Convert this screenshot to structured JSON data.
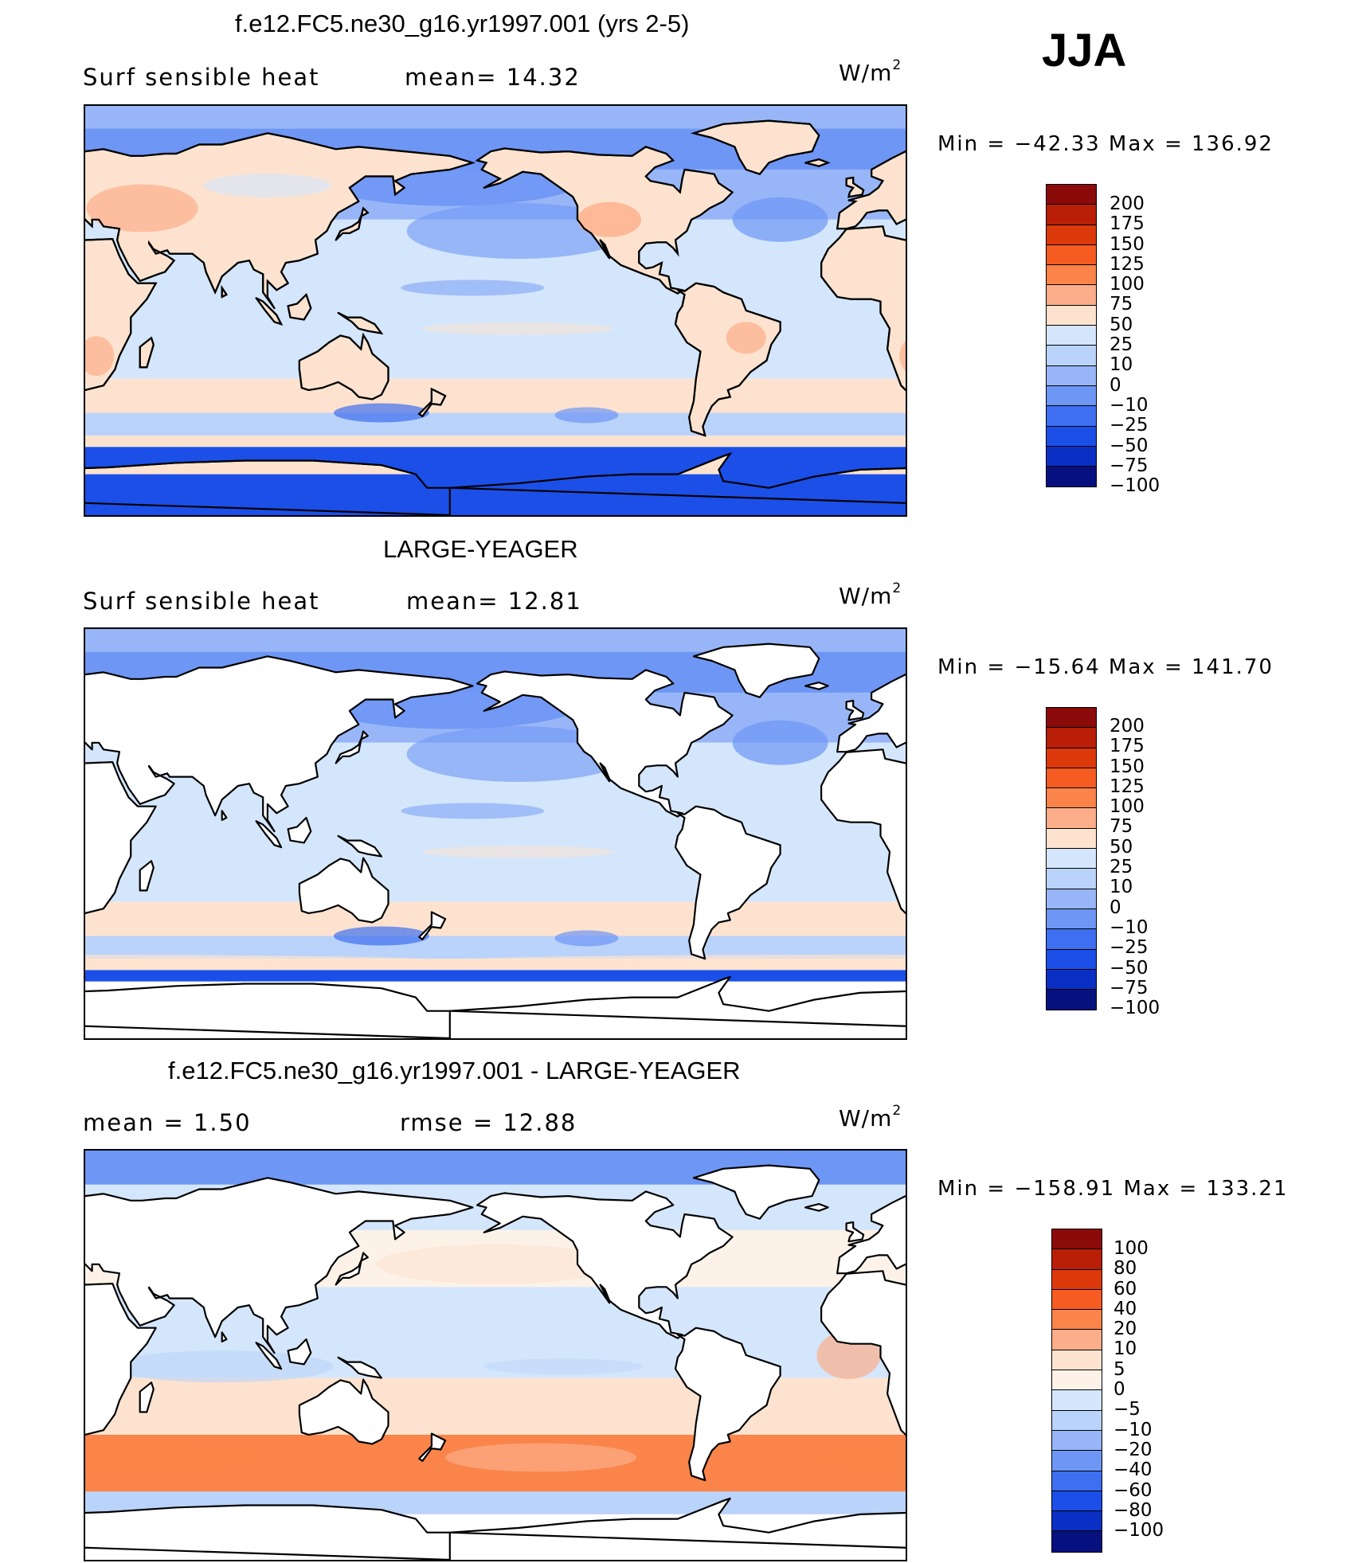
{
  "season": "JJA",
  "panels": [
    {
      "title": "f.e12.FC5.ne30_g16.yr1997.001 (yrs 2-5)",
      "left_text": "Surf  sensible heat",
      "right_text": "mean=   14.32",
      "units": "W/m",
      "units_sup": "2",
      "minmax": "Min  =  −42.33  Max  =  136.92",
      "colorbar": {
        "labels": [
          "200",
          "175",
          "150",
          "125",
          "100",
          "75",
          "50",
          "25",
          "10",
          "0",
          "−10",
          "−25",
          "−50",
          "−75",
          "−100"
        ],
        "colors": [
          "#8b0a0a",
          "#b91e06",
          "#dd3a0c",
          "#f65b21",
          "#fa8449",
          "#fcae8a",
          "#fde3cf",
          "#d4e6fb",
          "#bad3fa",
          "#98b6f7",
          "#6e96f5",
          "#3e6ff0",
          "#1b4fe8",
          "#0a2fc4",
          "#06117f"
        ]
      },
      "land_fill": true
    },
    {
      "title": "LARGE-YEAGER",
      "left_text": "Surf  sensible heat",
      "right_text": "mean=   12.81",
      "units": "W/m",
      "units_sup": "2",
      "minmax": "Min  =  −15.64  Max  =  141.70",
      "colorbar": {
        "labels": [
          "200",
          "175",
          "150",
          "125",
          "100",
          "75",
          "50",
          "25",
          "10",
          "0",
          "−10",
          "−25",
          "−50",
          "−75",
          "−100"
        ],
        "colors": [
          "#8b0a0a",
          "#b91e06",
          "#dd3a0c",
          "#f65b21",
          "#fa8449",
          "#fcae8a",
          "#fde3cf",
          "#d4e6fb",
          "#bad3fa",
          "#98b6f7",
          "#6e96f5",
          "#3e6ff0",
          "#1b4fe8",
          "#0a2fc4",
          "#06117f"
        ]
      },
      "land_fill": false
    },
    {
      "title": "f.e12.FC5.ne30_g16.yr1997.001 - LARGE-YEAGER",
      "left_text": "mean  =     1.50",
      "right_text": "rmse  =     12.88",
      "units": "W/m",
      "units_sup": "2",
      "minmax": "Min  =  −158.91  Max  =  133.21",
      "colorbar": {
        "labels": [
          "100",
          "80",
          "60",
          "40",
          "20",
          "10",
          "5",
          "0",
          "−5",
          "−10",
          "−20",
          "−40",
          "−60",
          "−80",
          "−100"
        ],
        "colors": [
          "#8b0a0a",
          "#b91e06",
          "#dd3a0c",
          "#f65b21",
          "#fa8449",
          "#fcae8a",
          "#fde3cf",
          "#fdf2e8",
          "#d4e6fb",
          "#bad3fa",
          "#98b6f7",
          "#6e96f5",
          "#3e6ff0",
          "#1b4fe8",
          "#0a2fc4",
          "#06117f"
        ]
      },
      "land_fill": false
    }
  ]
}
